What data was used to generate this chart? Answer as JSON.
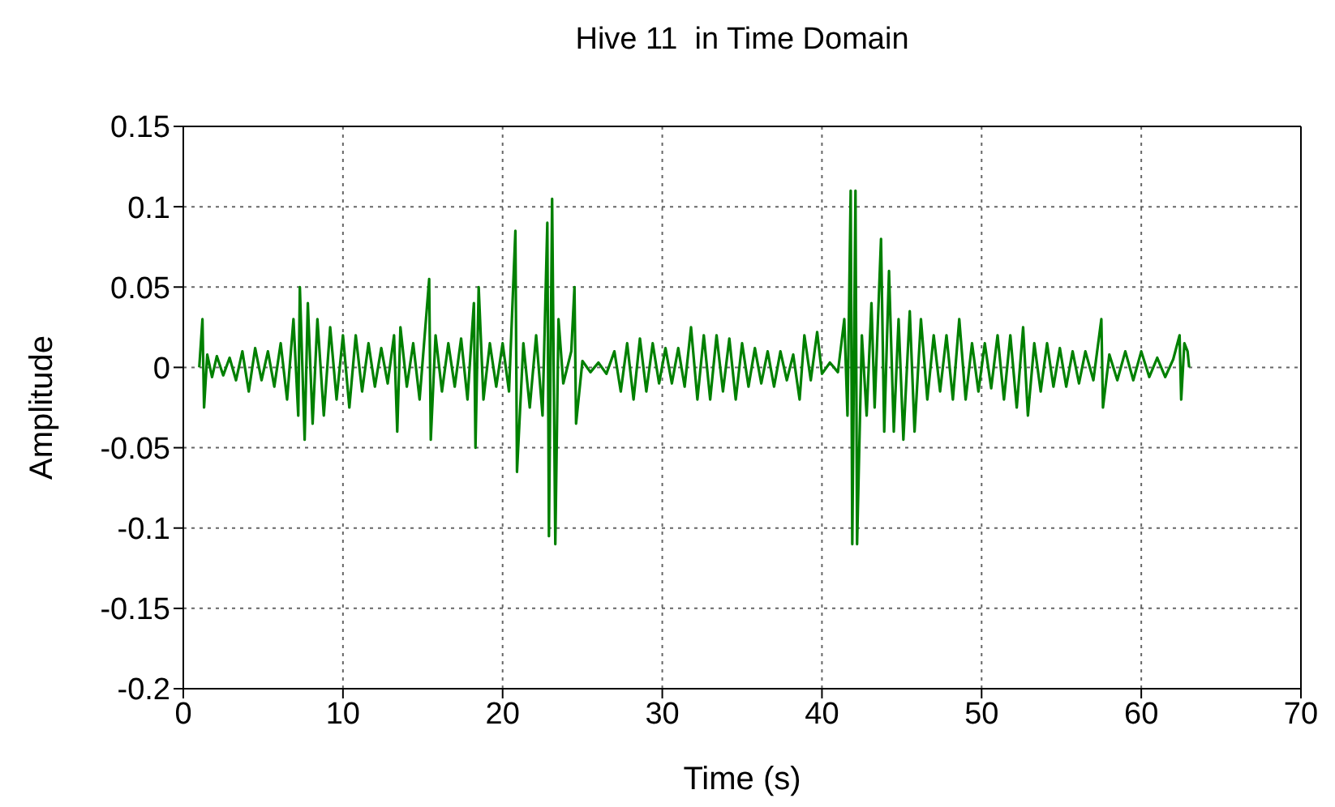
{
  "chart_data": {
    "type": "line",
    "title": "Hive 11  in Time Domain",
    "xlabel": "Time (s)",
    "ylabel": "Amplitude",
    "x": [
      1.0,
      1.2,
      1.3,
      1.5,
      1.8,
      2.1,
      2.5,
      2.9,
      3.3,
      3.7,
      4.1,
      4.5,
      4.9,
      5.3,
      5.7,
      6.1,
      6.5,
      6.9,
      7.2,
      7.3,
      7.6,
      7.8,
      8.1,
      8.4,
      8.8,
      9.2,
      9.6,
      10.0,
      10.4,
      10.8,
      11.2,
      11.6,
      12.0,
      12.4,
      12.8,
      13.2,
      13.4,
      13.6,
      14.0,
      14.4,
      14.8,
      15.2,
      15.4,
      15.5,
      15.8,
      16.2,
      16.6,
      17.0,
      17.4,
      17.8,
      18.2,
      18.3,
      18.5,
      18.8,
      19.2,
      19.6,
      20.0,
      20.4,
      20.8,
      20.9,
      21.3,
      21.7,
      22.1,
      22.5,
      22.8,
      22.9,
      23.1,
      23.3,
      23.5,
      23.8,
      24.3,
      24.5,
      24.6,
      25.0,
      25.5,
      26.0,
      26.5,
      27.0,
      27.4,
      27.8,
      28.2,
      28.6,
      29.0,
      29.4,
      29.8,
      30.2,
      30.6,
      31.0,
      31.4,
      31.8,
      32.2,
      32.6,
      33.0,
      33.4,
      33.8,
      34.2,
      34.6,
      35.0,
      35.4,
      35.8,
      36.2,
      36.6,
      37.0,
      37.4,
      37.8,
      38.2,
      38.6,
      38.9,
      39.3,
      39.7,
      40.0,
      40.5,
      41.0,
      41.4,
      41.6,
      41.8,
      41.9,
      42.1,
      42.2,
      42.5,
      42.8,
      43.1,
      43.3,
      43.7,
      43.9,
      44.2,
      44.5,
      44.8,
      45.1,
      45.5,
      45.8,
      46.2,
      46.6,
      47.0,
      47.4,
      47.8,
      48.2,
      48.6,
      49.0,
      49.4,
      49.8,
      50.2,
      50.6,
      51.0,
      51.4,
      51.8,
      52.2,
      52.6,
      52.9,
      53.3,
      53.7,
      54.1,
      54.5,
      54.9,
      55.3,
      55.7,
      56.1,
      56.5,
      57.0,
      57.5,
      57.6,
      58.0,
      58.5,
      59.0,
      59.5,
      60.0,
      60.5,
      61.0,
      61.5,
      62.0,
      62.4,
      62.5,
      62.7,
      62.9,
      63.0
    ],
    "values": [
      0,
      0.03,
      -0.025,
      0.008,
      -0.006,
      0.007,
      -0.005,
      0.006,
      -0.008,
      0.01,
      -0.015,
      0.012,
      -0.008,
      0.01,
      -0.012,
      0.015,
      -0.02,
      0.03,
      -0.03,
      0.05,
      -0.045,
      0.04,
      -0.035,
      0.03,
      -0.03,
      0.025,
      -0.02,
      0.02,
      -0.025,
      0.02,
      -0.015,
      0.015,
      -0.012,
      0.012,
      -0.01,
      0.02,
      -0.04,
      0.025,
      -0.012,
      0.015,
      -0.02,
      0.03,
      0.055,
      -0.045,
      0.02,
      -0.015,
      0.015,
      -0.012,
      0.018,
      -0.02,
      0.04,
      -0.05,
      0.05,
      -0.02,
      0.015,
      -0.012,
      0.015,
      -0.015,
      0.085,
      -0.065,
      0.015,
      -0.025,
      0.02,
      -0.03,
      0.09,
      -0.105,
      0.105,
      -0.11,
      0.03,
      -0.01,
      0.01,
      0.05,
      -0.035,
      0.004,
      -0.003,
      0.003,
      -0.004,
      0.01,
      -0.015,
      0.015,
      -0.02,
      0.018,
      -0.015,
      0.015,
      -0.01,
      0.012,
      -0.01,
      0.012,
      -0.012,
      0.025,
      -0.02,
      0.02,
      -0.02,
      0.02,
      -0.015,
      0.018,
      -0.02,
      0.015,
      -0.012,
      0.012,
      -0.01,
      0.01,
      -0.012,
      0.01,
      -0.008,
      0.008,
      -0.02,
      0.02,
      -0.008,
      0.022,
      -0.004,
      0.003,
      -0.003,
      0.03,
      -0.03,
      0.11,
      -0.11,
      0.11,
      -0.11,
      0.02,
      -0.03,
      0.04,
      -0.025,
      0.08,
      -0.04,
      0.06,
      -0.04,
      0.03,
      -0.045,
      0.035,
      -0.04,
      0.03,
      -0.02,
      0.02,
      -0.015,
      0.02,
      -0.02,
      0.03,
      -0.02,
      0.015,
      -0.015,
      0.015,
      -0.013,
      0.02,
      -0.02,
      0.02,
      -0.025,
      0.025,
      -0.03,
      0.015,
      -0.015,
      0.015,
      -0.012,
      0.012,
      -0.012,
      0.01,
      -0.01,
      0.01,
      -0.008,
      0.03,
      -0.025,
      0.008,
      -0.008,
      0.01,
      -0.008,
      0.01,
      -0.006,
      0.006,
      -0.006,
      0.005,
      0.02,
      -0.02,
      0.015,
      0.01,
      0
    ],
    "color": "#008000",
    "xlim": [
      0,
      70
    ],
    "xticks": [
      0,
      10,
      20,
      30,
      40,
      50,
      60,
      70
    ],
    "ylim": [
      -0.2,
      0.15
    ],
    "yticks": [
      -0.2,
      -0.15,
      -0.1,
      -0.05,
      0,
      0.05,
      0.1,
      0.15
    ],
    "grid": true
  }
}
